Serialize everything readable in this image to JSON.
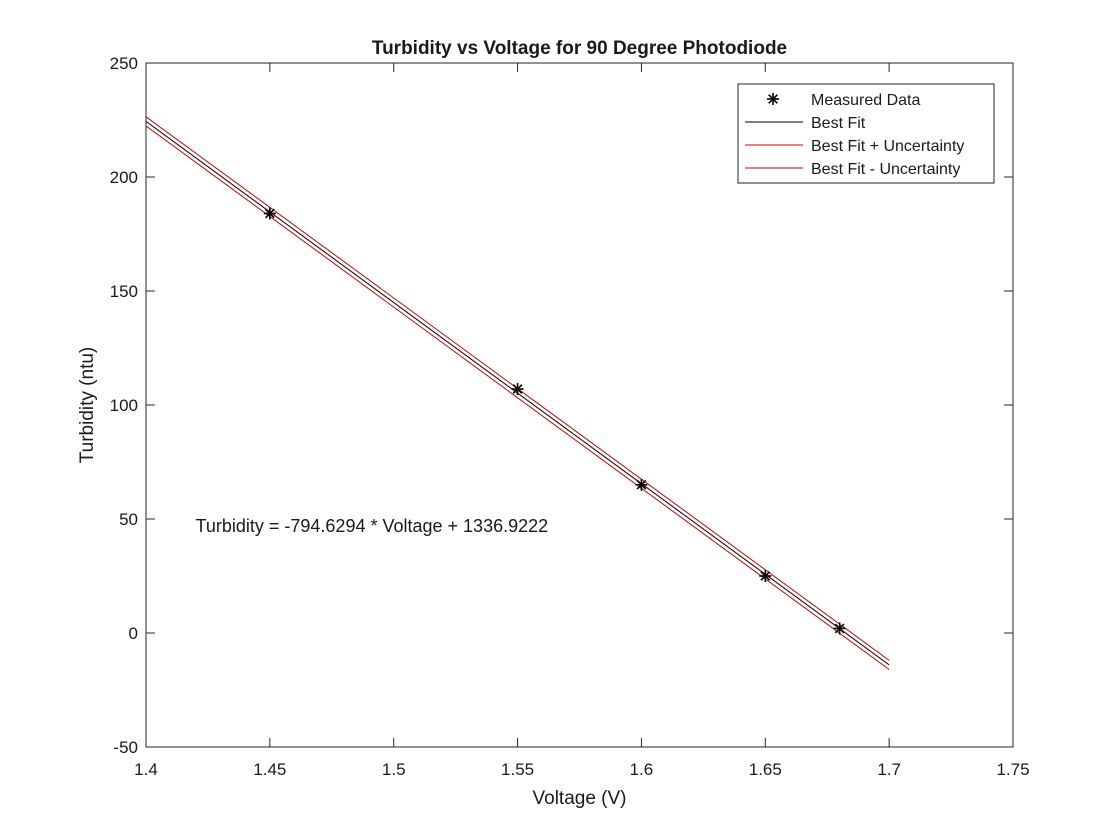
{
  "chart_data": {
    "type": "line",
    "title": "Turbidity vs Voltage for 90 Degree Photodiode",
    "xlabel": "Voltage (V)",
    "ylabel": "Turbidity (ntu)",
    "xlim": [
      1.4,
      1.75
    ],
    "ylim": [
      -50,
      250
    ],
    "xticks": [
      1.4,
      1.45,
      1.5,
      1.55,
      1.6,
      1.65,
      1.7,
      1.75
    ],
    "xtick_labels": [
      "1.4",
      "1.45",
      "1.5",
      "1.55",
      "1.6",
      "1.65",
      "1.7",
      "1.75"
    ],
    "yticks": [
      -50,
      0,
      50,
      100,
      150,
      200,
      250
    ],
    "ytick_labels": [
      "-50",
      "0",
      "50",
      "100",
      "150",
      "200",
      "250"
    ],
    "grid": false,
    "legend_position": "top-right",
    "series": [
      {
        "name": "Measured Data",
        "kind": "scatter",
        "marker": "asterisk",
        "color": "#000000",
        "x": [
          1.45,
          1.55,
          1.6,
          1.65,
          1.68
        ],
        "y": [
          184,
          107,
          65,
          25,
          2
        ]
      },
      {
        "name": "Best Fit",
        "kind": "line",
        "color": "#000000",
        "x": [
          1.4,
          1.7
        ],
        "y": [
          224.4,
          -13.98
        ]
      },
      {
        "name": "Best Fit + Uncertainty",
        "kind": "line",
        "color": "#d40000",
        "x": [
          1.4,
          1.7
        ],
        "y": [
          226.4,
          -12.0
        ]
      },
      {
        "name": "Best Fit - Uncertainty",
        "kind": "line",
        "color": "#d40000",
        "x": [
          1.4,
          1.7
        ],
        "y": [
          222.4,
          -16.0
        ]
      }
    ],
    "annotations": [
      {
        "text": "Turbidity = -794.6294 * Voltage + 1336.9222",
        "x": 1.42,
        "y": 47
      }
    ]
  }
}
